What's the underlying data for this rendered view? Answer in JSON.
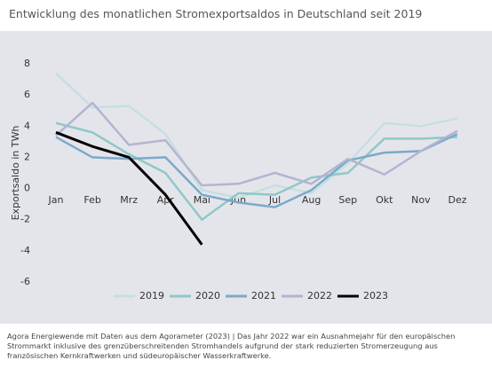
{
  "chart_data": {
    "type": "line",
    "title": "Entwicklung des monatlichen Stromexportsaldos in Deutschland seit 2019",
    "y_label": "Exportsaldo in TWh",
    "categories": [
      "Jan",
      "Feb",
      "Mrz",
      "Apr",
      "Mai",
      "Jun",
      "Jul",
      "Aug",
      "Sep",
      "Okt",
      "Nov",
      "Dez"
    ],
    "series": [
      {
        "name": "2019",
        "color": "#c6dfe1",
        "values": [
          7.4,
          5.2,
          5.3,
          3.5,
          -0.1,
          -0.6,
          0.2,
          -0.3,
          1.6,
          4.2,
          4.0,
          4.5
        ]
      },
      {
        "name": "2020",
        "color": "#8fc8c8",
        "values": [
          4.2,
          3.6,
          2.2,
          1.0,
          -2.0,
          -0.3,
          -0.4,
          0.7,
          1.0,
          3.2,
          3.2,
          3.3
        ]
      },
      {
        "name": "2021",
        "color": "#7aaaca",
        "values": [
          3.3,
          2.0,
          1.9,
          2.0,
          -0.4,
          -0.9,
          -1.2,
          -0.1,
          1.8,
          2.3,
          2.4,
          3.5
        ]
      },
      {
        "name": "2022",
        "color": "#b4b4d1",
        "values": [
          3.4,
          5.5,
          2.8,
          3.1,
          0.2,
          0.3,
          1.0,
          0.3,
          1.9,
          0.9,
          2.4,
          3.7
        ]
      },
      {
        "name": "2023",
        "color": "#000000",
        "values": [
          3.6,
          2.7,
          2.0,
          -0.4,
          -3.6,
          null,
          null,
          null,
          null,
          null,
          null,
          null
        ]
      }
    ],
    "ylim": [
      -6,
      8
    ],
    "yticks": [
      -6,
      -4,
      -2,
      0,
      2,
      4,
      6,
      8
    ],
    "source": "Agora Energiewende mit Daten aus dem Agorameter (2023) | Das Jahr 2022 war ein Ausnahmejahr für den europäischen Strommarkt inklusive des grenzüberschreitenden Stromhandels aufgrund der stark reduzierten Stromerzeugung aus französischen Kernkraftwerken und südeuropäischer Wasserkraftwerke."
  }
}
